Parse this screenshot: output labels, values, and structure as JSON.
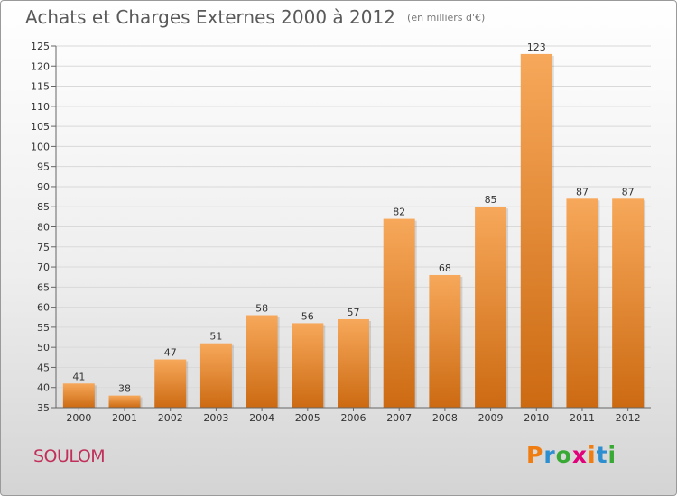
{
  "header": {
    "title": "Achats et Charges Externes 2000 à 2012",
    "subtitle": "(en milliers d'€)"
  },
  "footer": {
    "commune": "SOULOM",
    "logo_letters": [
      "P",
      "r",
      "o",
      "x",
      "i",
      "t",
      "i"
    ],
    "logo_colors": [
      "#f07d12",
      "#2d8fd0",
      "#39a935",
      "#e2007a",
      "#f07d12",
      "#2d8fd0",
      "#39a935"
    ]
  },
  "colors": {
    "bar_top": "#f7a85a",
    "bar_bottom": "#cc6a12",
    "grid": "#d9d9d9",
    "axis": "#666666"
  },
  "chart_data": {
    "type": "bar",
    "title": "Achats et Charges Externes 2000 à 2012",
    "subtitle": "(en milliers d'€)",
    "categories": [
      "2000",
      "2001",
      "2002",
      "2003",
      "2004",
      "2005",
      "2006",
      "2007",
      "2008",
      "2009",
      "2010",
      "2011",
      "2012"
    ],
    "values": [
      41,
      38,
      47,
      51,
      58,
      56,
      57,
      82,
      68,
      85,
      123,
      87,
      87
    ],
    "ylim": [
      35,
      125
    ],
    "yticks": [
      35,
      40,
      45,
      50,
      55,
      60,
      65,
      70,
      75,
      80,
      85,
      90,
      95,
      100,
      105,
      110,
      115,
      120,
      125
    ],
    "grid": true,
    "xlabel": "",
    "ylabel": ""
  }
}
